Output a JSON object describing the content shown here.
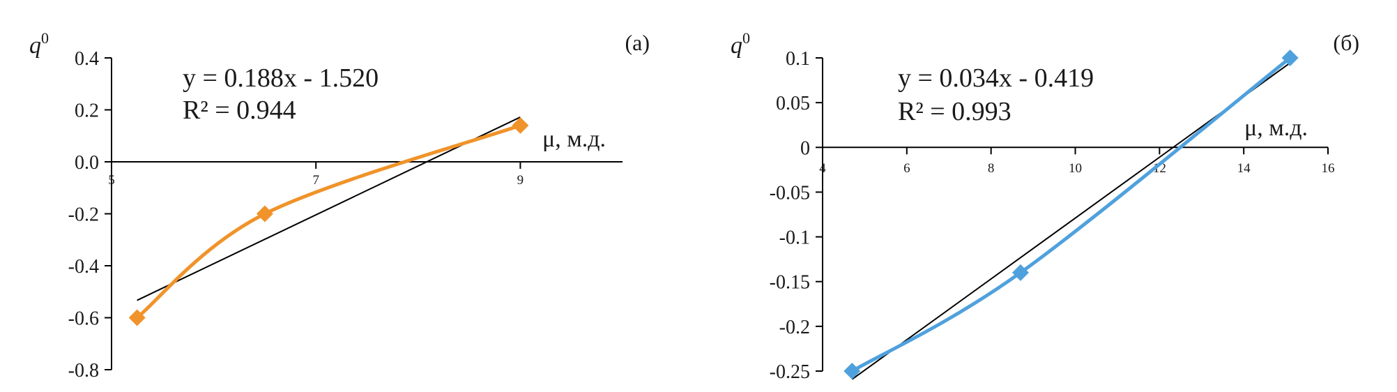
{
  "chart_data": [
    {
      "type": "line",
      "panel_label": "(а)",
      "ylabel": "q",
      "ylabel_sup": "0",
      "xlabel": "μ, м.д.",
      "xlim": [
        5,
        10
      ],
      "ylim": [
        -0.8,
        0.4
      ],
      "x_ticks": [
        5,
        7,
        9
      ],
      "x_tick_labels": [
        "5",
        "7",
        "9"
      ],
      "y_ticks": [
        0.4,
        0.2,
        0.0,
        -0.2,
        -0.4,
        -0.6,
        -0.8
      ],
      "y_tick_labels": [
        "0.4",
        "0.2",
        "0.0",
        "-0.2",
        "-0.4",
        "-0.6",
        "-0.8"
      ],
      "series": [
        {
          "color": "#F0932A",
          "x": [
            5.25,
            6.5,
            9.0
          ],
          "y": [
            -0.6,
            -0.2,
            0.14
          ]
        }
      ],
      "trendline": {
        "slope": 0.188,
        "intercept": -1.52,
        "x_range": [
          5.25,
          9.0
        ],
        "color": "#000000"
      },
      "equation": "y = 0.188x - 1.520",
      "r2": "R² = 0.944",
      "grid": false,
      "legend": "none"
    },
    {
      "type": "line",
      "panel_label": "(б)",
      "ylabel": "q",
      "ylabel_sup": "0",
      "xlabel": "μ, м.д.",
      "xlim": [
        4,
        16
      ],
      "ylim": [
        -0.25,
        0.1
      ],
      "x_ticks": [
        4,
        6,
        8,
        10,
        12,
        14,
        16
      ],
      "x_tick_labels": [
        "4",
        "6",
        "8",
        "10",
        "12",
        "14",
        "16"
      ],
      "y_ticks": [
        0.1,
        0.05,
        0,
        -0.05,
        -0.1,
        -0.15,
        -0.2,
        -0.25
      ],
      "y_tick_labels": [
        "0.1",
        "0.05",
        "0",
        "-0.05",
        "-0.1",
        "-0.15",
        "-0.2",
        "-0.25"
      ],
      "series": [
        {
          "color": "#4FA1DD",
          "x": [
            4.7,
            8.7,
            15.1
          ],
          "y": [
            -0.25,
            -0.14,
            0.1
          ]
        }
      ],
      "trendline": {
        "slope": 0.034,
        "intercept": -0.419,
        "x_range": [
          4.7,
          15.1
        ],
        "color": "#000000"
      },
      "equation": "y = 0.034x - 0.419",
      "r2": "R² = 0.993",
      "grid": false,
      "legend": "none"
    }
  ]
}
